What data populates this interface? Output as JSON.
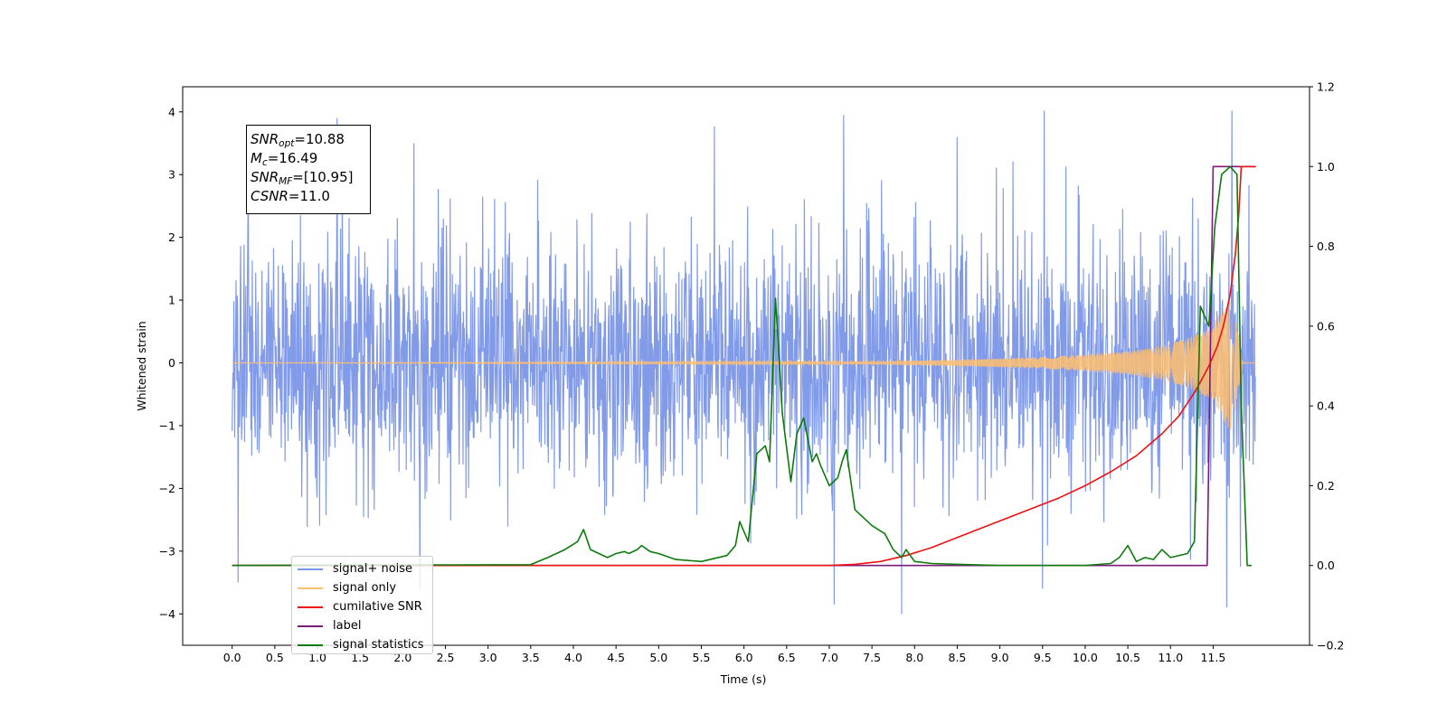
{
  "chart_data": {
    "type": "line",
    "title": "",
    "xlabel": "Time (s)",
    "ylabel": "Whitened strain",
    "y2label": "",
    "xlim": [
      -0.58,
      12.63
    ],
    "ylim": [
      -4.5,
      4.4
    ],
    "y2lim": [
      -0.2,
      1.2
    ],
    "x_ticks": [
      0.0,
      0.5,
      1.0,
      1.5,
      2.0,
      2.5,
      3.0,
      3.5,
      4.0,
      4.5,
      5.0,
      5.5,
      6.0,
      6.5,
      7.0,
      7.5,
      8.0,
      8.5,
      9.0,
      9.5,
      10.0,
      10.5,
      11.0,
      11.5
    ],
    "x_tick_labels": [
      "0.0",
      "0.5",
      "1.0",
      "1.5",
      "2.0",
      "2.5",
      "3.0",
      "3.5",
      "4.0",
      "4.5",
      "5.0",
      "5.5",
      "6.0",
      "6.5",
      "7.0",
      "7.5",
      "8.0",
      "8.5",
      "9.0",
      "9.5",
      "10.0",
      "10.5",
      "11.0",
      "11.5"
    ],
    "y_ticks": [
      -4,
      -3,
      -2,
      -1,
      0,
      1,
      2,
      3,
      4
    ],
    "y_tick_labels": [
      "−4",
      "−3",
      "−2",
      "−1",
      "0",
      "1",
      "2",
      "3",
      "4"
    ],
    "y2_ticks": [
      -0.2,
      0.0,
      0.2,
      0.4,
      0.6,
      0.8,
      1.0,
      1.2
    ],
    "y2_tick_labels": [
      "−0.2",
      "0.0",
      "0.2",
      "0.4",
      "0.6",
      "0.8",
      "1.0",
      "1.2"
    ],
    "grid": false,
    "legend_position": "lower-left",
    "series": [
      {
        "name": "signal+ noise",
        "axis": "left",
        "color": "#7b96e8",
        "x_range": [
          0.0,
          12.0
        ],
        "summary": "Gaussian whitened noise, mostly within ±2, peaks near ±4",
        "peaks": [
          [
            1.23,
            3.9
          ],
          [
            2.13,
            3.5
          ],
          [
            5.65,
            3.77
          ],
          [
            7.17,
            3.95
          ],
          [
            8.5,
            3.6
          ],
          [
            9.52,
            4.02
          ],
          [
            11.72,
            4.02
          ],
          [
            0.07,
            -3.5
          ],
          [
            2.2,
            -3.6
          ],
          [
            7.06,
            -3.85
          ],
          [
            7.85,
            -4.0
          ],
          [
            9.5,
            -3.6
          ],
          [
            11.66,
            -3.9
          ],
          [
            11.82,
            -3.25
          ]
        ]
      },
      {
        "name": "signal only",
        "axis": "left",
        "color": "#ffbe6e",
        "x_range": [
          0.0,
          12.0
        ],
        "summary": "chirp: amplitude near 0 until ~7.5 s, grows to about ±0.9 near 11.6 s, drops to 0 at 11.85 s",
        "envelope": [
          [
            0.0,
            0.0
          ],
          [
            7.5,
            0.02
          ],
          [
            8.5,
            0.05
          ],
          [
            9.5,
            0.09
          ],
          [
            10.5,
            0.18
          ],
          [
            11.0,
            0.3
          ],
          [
            11.3,
            0.45
          ],
          [
            11.5,
            0.62
          ],
          [
            11.6,
            0.85
          ],
          [
            11.7,
            1.1
          ],
          [
            11.78,
            0.6
          ],
          [
            11.85,
            0.0
          ],
          [
            12.0,
            0.0
          ]
        ]
      },
      {
        "name": "cumilative SNR",
        "axis": "right",
        "x": [
          0.0,
          7.0,
          7.3,
          7.6,
          7.9,
          8.2,
          8.5,
          8.8,
          9.1,
          9.4,
          9.7,
          10.0,
          10.3,
          10.6,
          10.9,
          11.1,
          11.3,
          11.45,
          11.55,
          11.62,
          11.7,
          11.76,
          11.8,
          11.83,
          12.0
        ],
        "y": [
          0.0,
          0.0,
          0.003,
          0.01,
          0.025,
          0.045,
          0.07,
          0.095,
          0.12,
          0.145,
          0.17,
          0.2,
          0.235,
          0.275,
          0.33,
          0.375,
          0.44,
          0.5,
          0.55,
          0.6,
          0.68,
          0.78,
          0.88,
          1.0,
          1.0
        ],
        "color": "#ee1111"
      },
      {
        "name": "label",
        "axis": "right",
        "x": [
          0.0,
          11.43,
          11.5,
          12.0
        ],
        "y": [
          0.0,
          0.0,
          1.0,
          1.0
        ],
        "color": "#7b1a7b"
      },
      {
        "name": "signal statistics",
        "axis": "right",
        "x": [
          0.0,
          3.5,
          3.7,
          3.9,
          4.05,
          4.12,
          4.2,
          4.4,
          4.5,
          4.6,
          4.65,
          4.75,
          4.8,
          4.9,
          5.0,
          5.2,
          5.5,
          5.8,
          5.9,
          5.95,
          6.05,
          6.15,
          6.25,
          6.3,
          6.37,
          6.45,
          6.55,
          6.62,
          6.7,
          6.8,
          6.85,
          6.9,
          7.0,
          7.05,
          7.1,
          7.15,
          7.2,
          7.3,
          7.5,
          7.65,
          7.75,
          7.85,
          7.9,
          8.0,
          8.2,
          8.5,
          9.0,
          10.0,
          10.3,
          10.4,
          10.5,
          10.6,
          10.7,
          10.8,
          10.9,
          11.0,
          11.2,
          11.28,
          11.35,
          11.45,
          11.52,
          11.6,
          11.7,
          11.78,
          11.83,
          11.9,
          11.95
        ],
        "y": [
          0.0,
          0.002,
          0.02,
          0.04,
          0.06,
          0.09,
          0.04,
          0.02,
          0.03,
          0.035,
          0.03,
          0.04,
          0.05,
          0.035,
          0.03,
          0.015,
          0.01,
          0.025,
          0.05,
          0.11,
          0.06,
          0.28,
          0.3,
          0.26,
          0.67,
          0.38,
          0.21,
          0.33,
          0.37,
          0.26,
          0.28,
          0.25,
          0.2,
          0.21,
          0.22,
          0.26,
          0.29,
          0.14,
          0.1,
          0.08,
          0.04,
          0.02,
          0.04,
          0.01,
          0.005,
          0.003,
          0.0,
          0.0,
          0.005,
          0.02,
          0.05,
          0.01,
          0.02,
          0.015,
          0.04,
          0.02,
          0.03,
          0.06,
          0.65,
          0.6,
          0.85,
          0.98,
          1.0,
          0.98,
          0.4,
          0.0,
          0.0
        ],
        "color": "#0e7a0e"
      }
    ],
    "annotation": {
      "snr_opt": {
        "label": "SNR",
        "sub": "opt",
        "value": "=10.88"
      },
      "mc": {
        "label": "M",
        "sub": "c",
        "value": "=16.49"
      },
      "snr_mf": {
        "label": "SNR",
        "sub": "MF",
        "value": "=[10.95]"
      },
      "csnr": {
        "label": "CSNR",
        "sub": "",
        "value": "=11.0"
      }
    },
    "legend": {
      "items": [
        {
          "label": "signal+ noise",
          "color": "#7b96e8"
        },
        {
          "label": "signal only",
          "color": "#ffbe6e"
        },
        {
          "label": "cumilative SNR",
          "color": "#ee1111"
        },
        {
          "label": "label",
          "color": "#7b1a7b"
        },
        {
          "label": "signal statistics",
          "color": "#0e7a0e"
        }
      ]
    }
  }
}
